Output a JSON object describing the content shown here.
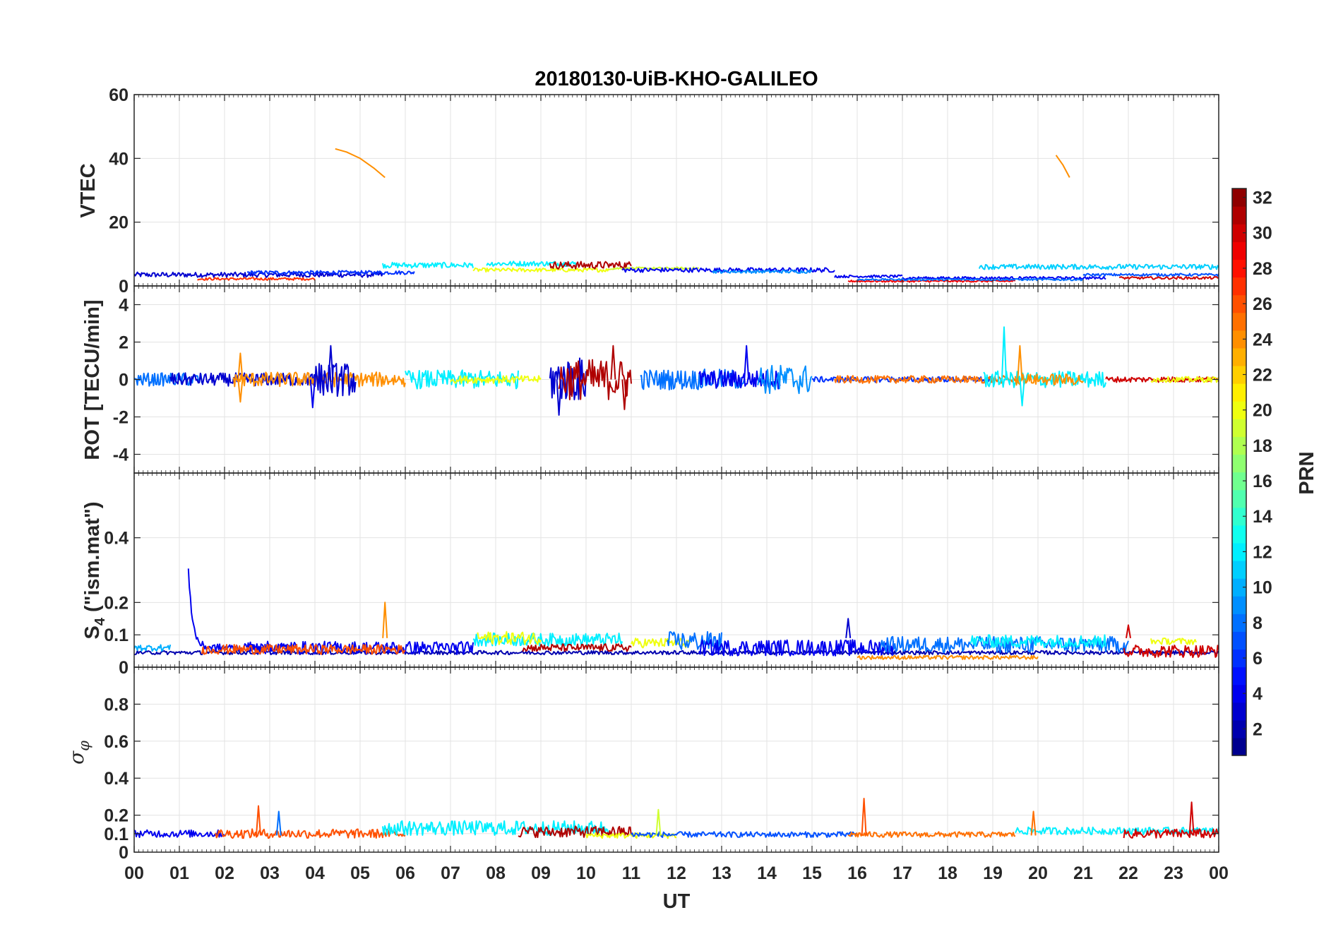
{
  "chart_data": {
    "type": "line",
    "title": "20180130-UiB-KHO-GALILEO",
    "xlabel": "UT",
    "xlim": [
      0,
      24
    ],
    "xticks": [
      0,
      1,
      2,
      3,
      4,
      5,
      6,
      7,
      8,
      9,
      10,
      11,
      12,
      13,
      14,
      15,
      16,
      17,
      18,
      19,
      20,
      21,
      22,
      23,
      24
    ],
    "xtick_labels": [
      "00",
      "01",
      "02",
      "03",
      "04",
      "05",
      "06",
      "07",
      "08",
      "09",
      "10",
      "11",
      "12",
      "13",
      "14",
      "15",
      "16",
      "17",
      "18",
      "19",
      "20",
      "21",
      "22",
      "23",
      "00"
    ],
    "grid": true,
    "colorbar": {
      "label": "PRN",
      "range": [
        1,
        32
      ],
      "ticks": [
        2,
        4,
        6,
        8,
        10,
        12,
        14,
        16,
        18,
        20,
        22,
        24,
        26,
        28,
        30,
        32
      ],
      "tick_labels": [
        "2",
        "4",
        "6",
        "8",
        "10",
        "12",
        "14",
        "16",
        "18",
        "20",
        "22",
        "24",
        "26",
        "28",
        "30",
        "32"
      ],
      "colormap": "jet"
    },
    "panels": [
      {
        "ylabel": "VTEC",
        "ylim": [
          0,
          60
        ],
        "yticks": [
          0,
          20,
          40,
          60
        ],
        "ytick_labels": [
          "0",
          "20",
          "40",
          "60"
        ],
        "series": [
          {
            "prn": 24,
            "kind": "trace",
            "x": [
              4.45,
              4.7,
              5.0,
              5.3,
              5.55
            ],
            "y": [
              43,
              42,
              40,
              37,
              34
            ]
          },
          {
            "prn": 24,
            "kind": "trace",
            "x": [
              20.4,
              20.55,
              20.7
            ],
            "y": [
              41,
              38,
              34
            ]
          },
          {
            "prn": 3,
            "kind": "band",
            "x": [
              0,
              5.5
            ],
            "level": 3.5,
            "amp": 0.8
          },
          {
            "prn": 6,
            "kind": "band",
            "x": [
              2.5,
              6.2
            ],
            "level": 4.2,
            "amp": 0.6
          },
          {
            "prn": 27,
            "kind": "band",
            "x": [
              1.4,
              4.0
            ],
            "level": 2.2,
            "amp": 0.4
          },
          {
            "prn": 12,
            "kind": "band",
            "x": [
              5.5,
              7.5
            ],
            "level": 6.5,
            "amp": 0.9
          },
          {
            "prn": 20,
            "kind": "band",
            "x": [
              7.5,
              10.5
            ],
            "level": 5.0,
            "amp": 0.6
          },
          {
            "prn": 12,
            "kind": "band",
            "x": [
              7.8,
              9.8
            ],
            "level": 7.0,
            "amp": 0.8
          },
          {
            "prn": 31,
            "kind": "band",
            "x": [
              9.2,
              11.0
            ],
            "level": 6.5,
            "amp": 1.2
          },
          {
            "prn": 19,
            "kind": "band",
            "x": [
              10.5,
              12.5
            ],
            "level": 5.5,
            "amp": 0.4
          },
          {
            "prn": 4,
            "kind": "band",
            "x": [
              10.8,
              15.5
            ],
            "level": 5.0,
            "amp": 0.7
          },
          {
            "prn": 9,
            "kind": "band",
            "x": [
              12.8,
              15.0
            ],
            "level": 4.5,
            "amp": 0.5
          },
          {
            "prn": 4,
            "kind": "band",
            "x": [
              15.5,
              17.0
            ],
            "level": 3.0,
            "amp": 0.4
          },
          {
            "prn": 29,
            "kind": "band",
            "x": [
              15.8,
              19.5
            ],
            "level": 1.5,
            "amp": 0.3
          },
          {
            "prn": 4,
            "kind": "band",
            "x": [
              17.0,
              21.5
            ],
            "level": 2.5,
            "amp": 0.4
          },
          {
            "prn": 11,
            "kind": "band",
            "x": [
              18.7,
              24
            ],
            "level": 6.0,
            "amp": 0.8
          },
          {
            "prn": 8,
            "kind": "band",
            "x": [
              16.0,
              21.0
            ],
            "level": 2.0,
            "amp": 0.3
          },
          {
            "prn": 30,
            "kind": "band",
            "x": [
              21.8,
              24
            ],
            "level": 2.5,
            "amp": 0.4
          },
          {
            "prn": 7,
            "kind": "band",
            "x": [
              21.0,
              24
            ],
            "level": 3.5,
            "amp": 0.4
          }
        ]
      },
      {
        "ylabel": "ROT [TECU/min]",
        "ylim": [
          -5,
          5
        ],
        "yticks": [
          -4,
          -2,
          0,
          2,
          4
        ],
        "ytick_labels": [
          "-4",
          "-2",
          "0",
          "2",
          "4"
        ],
        "series": [
          {
            "prn": 8,
            "kind": "band",
            "x": [
              0,
              1.5
            ],
            "level": 0,
            "amp": 0.35
          },
          {
            "prn": 3,
            "kind": "band",
            "x": [
              0.8,
              4.2
            ],
            "level": 0,
            "amp": 0.35
          },
          {
            "prn": 24,
            "kind": "band",
            "x": [
              2.2,
              6.0
            ],
            "level": 0,
            "amp": 0.4
          },
          {
            "prn": 3,
            "kind": "band",
            "x": [
              4.0,
              4.9
            ],
            "level": 0,
            "amp": 0.9
          },
          {
            "prn": 12,
            "kind": "band",
            "x": [
              6.0,
              8.5
            ],
            "level": 0,
            "amp": 0.5
          },
          {
            "prn": 20,
            "kind": "band",
            "x": [
              7.0,
              9.0
            ],
            "level": 0,
            "amp": 0.2
          },
          {
            "prn": 3,
            "kind": "band",
            "x": [
              9.2,
              10.0
            ],
            "level": 0,
            "amp": 1.2
          },
          {
            "prn": 31,
            "kind": "band",
            "x": [
              9.4,
              11.0
            ],
            "level": 0,
            "amp": 1.1
          },
          {
            "prn": 8,
            "kind": "band",
            "x": [
              11.2,
              13.5
            ],
            "level": 0,
            "amp": 0.55
          },
          {
            "prn": 4,
            "kind": "band",
            "x": [
              12.5,
              14.3
            ],
            "level": 0,
            "amp": 0.5
          },
          {
            "prn": 9,
            "kind": "band",
            "x": [
              13.8,
              15.0
            ],
            "level": 0,
            "amp": 0.8
          },
          {
            "prn": 6,
            "kind": "band",
            "x": [
              15.0,
              19.0
            ],
            "level": 0,
            "amp": 0.15
          },
          {
            "prn": 25,
            "kind": "band",
            "x": [
              15.5,
              19.5
            ],
            "level": 0,
            "amp": 0.2
          },
          {
            "prn": 12,
            "kind": "band",
            "x": [
              18.8,
              21.5
            ],
            "level": 0,
            "amp": 0.45
          },
          {
            "prn": 24,
            "kind": "band",
            "x": [
              19.5,
              21.0
            ],
            "level": 0,
            "amp": 0.3
          },
          {
            "prn": 30,
            "kind": "band",
            "x": [
              21.5,
              24
            ],
            "level": 0,
            "amp": 0.15
          },
          {
            "prn": 20,
            "kind": "band",
            "x": [
              22.5,
              24
            ],
            "level": 0,
            "amp": 0.15
          },
          {
            "prn": 12,
            "kind": "spike",
            "x": 19.25,
            "y": 2.8
          },
          {
            "prn": 24,
            "kind": "spike",
            "x": 19.6,
            "y": 1.8
          },
          {
            "prn": 12,
            "kind": "spike",
            "x": 19.65,
            "y": -1.4
          },
          {
            "prn": 24,
            "kind": "spike",
            "x": 2.35,
            "y": 1.4
          },
          {
            "prn": 24,
            "kind": "spike",
            "x": 2.35,
            "y": -1.2
          },
          {
            "prn": 4,
            "kind": "spike",
            "x": 13.55,
            "y": 1.8
          },
          {
            "prn": 3,
            "kind": "spike",
            "x": 4.35,
            "y": 1.8
          },
          {
            "prn": 4,
            "kind": "spike",
            "x": 3.95,
            "y": -1.5
          },
          {
            "prn": 31,
            "kind": "spike",
            "x": 10.6,
            "y": 1.8
          },
          {
            "prn": 31,
            "kind": "spike",
            "x": 10.85,
            "y": -1.6
          },
          {
            "prn": 3,
            "kind": "spike",
            "x": 9.4,
            "y": -1.9
          }
        ]
      },
      {
        "ylabel": "S4 (\"ism.mat\")",
        "ylabel_main": "S",
        "ylabel_sub": "4",
        "ylabel_rest": " (\"ism.mat\")",
        "ylim": [
          0,
          0.6
        ],
        "yticks": [
          0,
          0.1,
          0.2,
          0.4
        ],
        "ytick_labels": [
          "0",
          "0.1",
          "0.2",
          "0.4"
        ],
        "series": [
          {
            "prn": 2,
            "kind": "band",
            "x": [
              0,
              24
            ],
            "level": 0.045,
            "amp": 0.006
          },
          {
            "prn": 10,
            "kind": "band",
            "x": [
              0,
              0.8
            ],
            "level": 0.06,
            "amp": 0.01
          },
          {
            "prn": 4,
            "kind": "decay",
            "x": [
              1.2,
              3.5
            ],
            "peak": 0.31,
            "base": 0.06
          },
          {
            "prn": 4,
            "kind": "band",
            "x": [
              2.5,
              7.5
            ],
            "level": 0.06,
            "amp": 0.02
          },
          {
            "prn": 26,
            "kind": "band",
            "x": [
              1.5,
              6.0
            ],
            "level": 0.055,
            "amp": 0.015
          },
          {
            "prn": 24,
            "kind": "spike",
            "x": 5.55,
            "y": 0.2
          },
          {
            "prn": 12,
            "kind": "band",
            "x": [
              7.5,
              10.8
            ],
            "level": 0.085,
            "amp": 0.02
          },
          {
            "prn": 20,
            "kind": "band",
            "x": [
              7.6,
              9.0
            ],
            "level": 0.09,
            "amp": 0.02
          },
          {
            "prn": 31,
            "kind": "band",
            "x": [
              8.6,
              11.0
            ],
            "level": 0.06,
            "amp": 0.012
          },
          {
            "prn": 20,
            "kind": "band",
            "x": [
              11.0,
              12.3
            ],
            "level": 0.075,
            "amp": 0.015
          },
          {
            "prn": 8,
            "kind": "band",
            "x": [
              11.8,
              13.0
            ],
            "level": 0.08,
            "amp": 0.03
          },
          {
            "prn": 4,
            "kind": "band",
            "x": [
              12.5,
              16.8
            ],
            "level": 0.06,
            "amp": 0.025
          },
          {
            "prn": 3,
            "kind": "spike",
            "x": 15.8,
            "y": 0.15
          },
          {
            "prn": 24,
            "kind": "band",
            "x": [
              16.0,
              20.0
            ],
            "level": 0.03,
            "amp": 0.006
          },
          {
            "prn": 8,
            "kind": "band",
            "x": [
              16.5,
              22.0
            ],
            "level": 0.07,
            "amp": 0.025
          },
          {
            "prn": 12,
            "kind": "band",
            "x": [
              18.5,
              21.5
            ],
            "level": 0.08,
            "amp": 0.02
          },
          {
            "prn": 30,
            "kind": "band",
            "x": [
              21.9,
              24
            ],
            "level": 0.05,
            "amp": 0.02
          },
          {
            "prn": 20,
            "kind": "band",
            "x": [
              22.5,
              23.5
            ],
            "level": 0.08,
            "amp": 0.01
          },
          {
            "prn": 30,
            "kind": "spike",
            "x": 22.0,
            "y": 0.13
          }
        ]
      },
      {
        "ylabel": "σφ",
        "ylabel_main": "σ",
        "ylabel_sub": "φ",
        "ylim": [
          0,
          1
        ],
        "yticks": [
          0,
          0.1,
          0.2,
          0.4,
          0.6,
          0.8
        ],
        "ytick_labels": [
          "0",
          "0.1",
          "0.2",
          "0.4",
          "0.6",
          "0.8"
        ],
        "series": [
          {
            "prn": 4,
            "kind": "band",
            "x": [
              0,
              2.0
            ],
            "level": 0.1,
            "amp": 0.02
          },
          {
            "prn": 26,
            "kind": "band",
            "x": [
              1.8,
              6.0
            ],
            "level": 0.1,
            "amp": 0.025
          },
          {
            "prn": 12,
            "kind": "band",
            "x": [
              5.5,
              10.5
            ],
            "level": 0.13,
            "amp": 0.04
          },
          {
            "prn": 31,
            "kind": "band",
            "x": [
              8.5,
              11.0
            ],
            "level": 0.11,
            "amp": 0.03
          },
          {
            "prn": 20,
            "kind": "band",
            "x": [
              10.0,
              12.0
            ],
            "level": 0.09,
            "amp": 0.015
          },
          {
            "prn": 7,
            "kind": "band",
            "x": [
              11.0,
              16.0
            ],
            "level": 0.095,
            "amp": 0.015
          },
          {
            "prn": 25,
            "kind": "band",
            "x": [
              15.8,
              19.5
            ],
            "level": 0.095,
            "amp": 0.015
          },
          {
            "prn": 12,
            "kind": "band",
            "x": [
              19.5,
              24
            ],
            "level": 0.115,
            "amp": 0.02
          },
          {
            "prn": 30,
            "kind": "band",
            "x": [
              21.9,
              24
            ],
            "level": 0.1,
            "amp": 0.025
          },
          {
            "prn": 26,
            "kind": "spike",
            "x": 2.75,
            "y": 0.25
          },
          {
            "prn": 8,
            "kind": "spike",
            "x": 3.2,
            "y": 0.22
          },
          {
            "prn": 26,
            "kind": "spike",
            "x": 16.15,
            "y": 0.29
          },
          {
            "prn": 25,
            "kind": "spike",
            "x": 19.9,
            "y": 0.22
          },
          {
            "prn": 30,
            "kind": "spike",
            "x": 23.4,
            "y": 0.27
          },
          {
            "prn": 19,
            "kind": "spike",
            "x": 11.6,
            "y": 0.23
          }
        ]
      }
    ]
  }
}
